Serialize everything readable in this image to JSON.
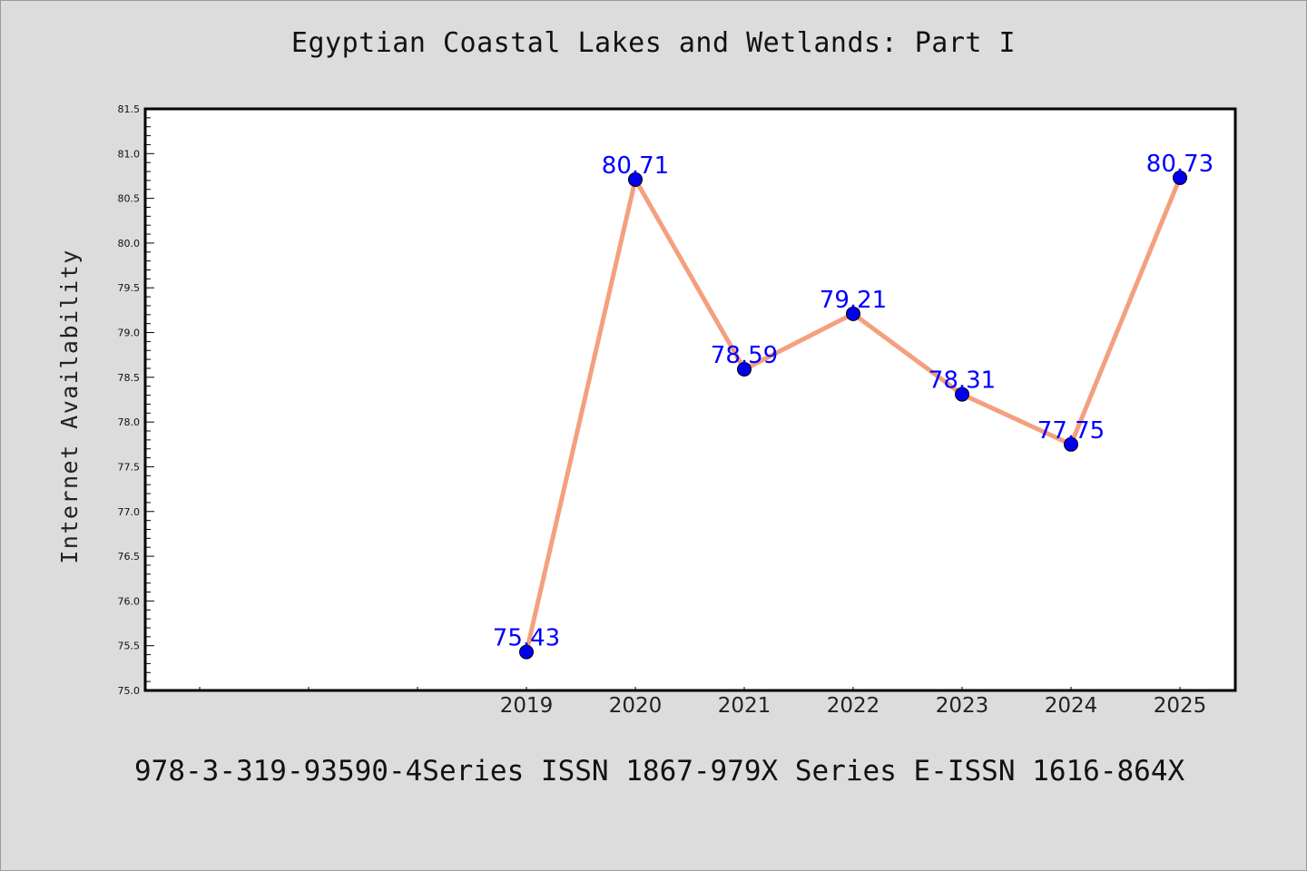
{
  "chart_data": {
    "type": "line",
    "title": "Egyptian Coastal Lakes and Wetlands: Part I",
    "xlabel": "",
    "ylabel": "Internet Availability",
    "categories": [
      "2019",
      "2020",
      "2021",
      "2022",
      "2023",
      "2024",
      "2025"
    ],
    "series": [
      {
        "values": [
          75.43,
          80.71,
          78.59,
          79.21,
          78.31,
          77.75,
          80.73
        ],
        "data_labels": [
          "75.43",
          "80.71",
          "78.59",
          "79.21",
          "78.31",
          "77.75",
          "80.73"
        ],
        "line_color": "#f4a07e",
        "marker_color": "#0000ee"
      }
    ],
    "ylim": [
      75.0,
      81.5
    ],
    "yticks": [
      "75.0",
      "75.5",
      "76.0",
      "76.5",
      "77.0",
      "77.5",
      "78.0",
      "78.5",
      "79.0",
      "79.5",
      "80.0",
      "80.5",
      "81.0",
      "81.5"
    ],
    "ytick_step": 0.5,
    "grid": false,
    "legend": "none",
    "data_label_color": "#0000ff",
    "background_color": "#dcdcdc",
    "plot_background": "#ffffff"
  },
  "footer": {
    "text": "978-3-319-93590-4Series ISSN 1867-979X Series E-ISSN 1616-864X"
  }
}
